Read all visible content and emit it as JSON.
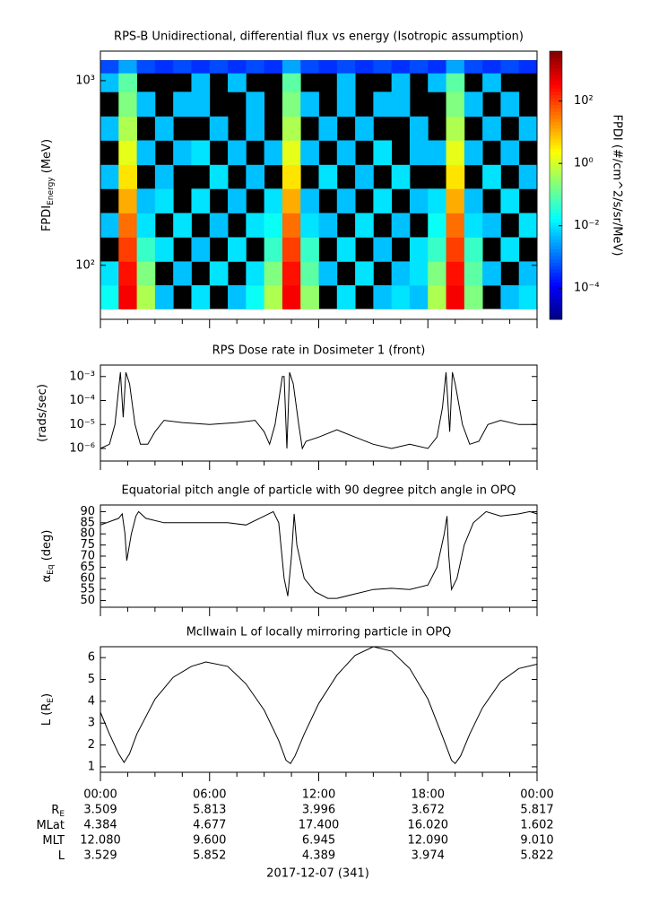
{
  "chart_data": [
    {
      "type": "heatmap",
      "title": "RPS-B  Unidirectional, differential flux vs energy (Isotropic assumption)",
      "ylabel": "FPDI",
      "ylabel_sub": "Energy",
      "ylabel_suffix": " (MeV)",
      "zlabel": "FPDI (#/cm^2/s/sr/MeV)",
      "xlim": [
        0,
        24
      ],
      "xticks": [
        0,
        6,
        12,
        18,
        24
      ],
      "ylog": true,
      "ylim": [
        51,
        1445
      ],
      "yticks": [
        {
          "value": 100,
          "label": "10²"
        },
        {
          "value": 1000,
          "label": "10³"
        }
      ],
      "zlog": true,
      "zlim": [
        1e-05,
        4000
      ],
      "zticks": [
        {
          "value": 0.0001,
          "label": "10⁻⁴"
        },
        {
          "value": 0.01,
          "label": "10⁻²"
        },
        {
          "value": 1,
          "label": "10⁰"
        },
        {
          "value": 100,
          "label": "10²"
        }
      ],
      "colormap": "jet",
      "time_bins": [
        0,
        1,
        2,
        3,
        4,
        5,
        6,
        7,
        8,
        9,
        10,
        11,
        12,
        13,
        14,
        15,
        16,
        17,
        18,
        19,
        20,
        21,
        22,
        23,
        24
      ],
      "energy_bins": [
        58,
        78,
        105,
        142,
        192,
        260,
        350,
        475,
        640,
        870,
        1100,
        1290
      ],
      "z": [
        [
          0.02,
          400,
          0.5,
          0.005,
          null,
          0.01,
          null,
          0.005,
          0.02,
          0.5,
          400,
          0.3,
          null,
          0.01,
          null,
          0.005,
          0.01,
          0.005,
          0.5,
          400,
          0.2,
          null,
          0.005,
          0.01
        ],
        [
          0.01,
          250,
          0.2,
          null,
          0.005,
          null,
          0.01,
          null,
          0.01,
          0.2,
          250,
          0.1,
          0.005,
          null,
          0.01,
          null,
          0.005,
          0.01,
          0.2,
          250,
          0.1,
          0.005,
          null,
          0.005
        ],
        [
          null,
          100,
          0.05,
          0.01,
          null,
          0.005,
          null,
          0.01,
          null,
          0.05,
          100,
          0.05,
          null,
          0.01,
          null,
          0.005,
          null,
          0.01,
          0.05,
          100,
          0.05,
          null,
          0.01,
          null
        ],
        [
          0.005,
          40,
          0.01,
          null,
          0.01,
          null,
          0.005,
          null,
          0.01,
          0.02,
          40,
          0.01,
          0.005,
          null,
          0.01,
          null,
          0.005,
          null,
          0.02,
          40,
          0.01,
          0.005,
          null,
          0.01
        ],
        [
          null,
          12,
          0.005,
          0.01,
          null,
          0.01,
          null,
          0.005,
          null,
          0.01,
          12,
          0.005,
          null,
          0.005,
          null,
          0.01,
          null,
          0.005,
          0.01,
          12,
          0.005,
          null,
          0.01,
          null
        ],
        [
          0.005,
          4,
          null,
          0.005,
          null,
          null,
          0.01,
          null,
          0.005,
          null,
          4,
          null,
          0.01,
          null,
          0.005,
          null,
          0.01,
          null,
          null,
          4,
          null,
          0.01,
          null,
          0.005
        ],
        [
          null,
          1.5,
          0.005,
          null,
          0.005,
          0.01,
          null,
          0.005,
          null,
          0.005,
          1.5,
          0.005,
          null,
          0.005,
          null,
          0.01,
          null,
          0.005,
          0.005,
          1.5,
          0.005,
          null,
          0.005,
          null
        ],
        [
          0.005,
          0.5,
          null,
          0.005,
          null,
          null,
          0.005,
          null,
          0.005,
          null,
          0.5,
          null,
          0.005,
          null,
          0.005,
          null,
          null,
          0.005,
          null,
          0.5,
          null,
          0.005,
          null,
          0.005
        ],
        [
          null,
          0.2,
          0.005,
          null,
          0.005,
          0.005,
          null,
          null,
          0.005,
          null,
          0.2,
          0.005,
          null,
          0.005,
          null,
          0.005,
          0.005,
          null,
          null,
          0.2,
          0.005,
          null,
          0.005,
          null
        ],
        [
          0.005,
          0.1,
          null,
          null,
          null,
          0.005,
          null,
          0.005,
          null,
          null,
          0.1,
          null,
          null,
          0.005,
          null,
          null,
          0.005,
          null,
          0.005,
          0.1,
          null,
          0.005,
          null,
          null
        ],
        [
          0.0005,
          0.003,
          0.0005,
          0.0003,
          0.0005,
          0.0003,
          0.0005,
          0.0003,
          0.0005,
          0.0003,
          0.003,
          0.0005,
          0.0003,
          0.0005,
          0.0003,
          0.0005,
          0.0003,
          0.0005,
          0.0003,
          0.003,
          0.0005,
          0.0003,
          0.0005,
          0.0003
        ]
      ]
    },
    {
      "type": "line",
      "title": "RPS  Dose rate in Dosimeter 1 (front)",
      "ylabel": "(rads/sec)",
      "xlim": [
        0,
        24
      ],
      "xticks": [
        0,
        6,
        12,
        18,
        24
      ],
      "ylog": true,
      "ylim": [
        3e-07,
        0.003
      ],
      "yticks": [
        {
          "value": 1e-06,
          "label": "10⁻⁶"
        },
        {
          "value": 1e-05,
          "label": "10⁻⁵"
        },
        {
          "value": 0.0001,
          "label": "10⁻⁴"
        },
        {
          "value": 0.001,
          "label": "10⁻³"
        }
      ],
      "color": "#000000",
      "x": [
        0,
        0.5,
        0.8,
        1.0,
        1.1,
        1.25,
        1.4,
        1.6,
        1.9,
        2.2,
        2.6,
        3.0,
        3.5,
        4.5,
        6,
        7.5,
        8.5,
        9,
        9.3,
        9.6,
        9.8,
        10.0,
        10.1,
        10.25,
        10.4,
        10.6,
        10.9,
        11.1,
        11.3,
        12,
        13,
        14,
        15,
        16,
        17,
        18,
        18.5,
        18.8,
        19.0,
        19.2,
        19.35,
        19.5,
        19.9,
        20.3,
        20.8,
        21.3,
        22,
        23,
        24
      ],
      "y": [
        1e-06,
        1.5e-06,
        1e-05,
        0.0003,
        0.0015,
        2e-05,
        0.0015,
        0.0005,
        1e-05,
        1.5e-06,
        1.5e-06,
        5e-06,
        1.5e-05,
        1.2e-05,
        1e-05,
        1.2e-05,
        1.5e-05,
        5e-06,
        1.5e-06,
        1e-05,
        0.0001,
        0.001,
        0.001,
        1e-06,
        0.0015,
        0.0005,
        1e-05,
        1e-06,
        2e-06,
        3e-06,
        6e-06,
        3e-06,
        1.5e-06,
        1e-06,
        1.5e-06,
        1e-06,
        3e-06,
        5e-05,
        0.0015,
        5e-06,
        0.0015,
        0.0005,
        1e-05,
        1.5e-06,
        2e-06,
        1e-05,
        1.5e-05,
        1e-05,
        1e-05
      ]
    },
    {
      "type": "line",
      "title": "Equatorial pitch angle of particle with 90 degree pitch angle in OPQ",
      "ylabel": "α",
      "ylabel_sub": "Eq",
      "ylabel_suffix": " (deg)",
      "xlim": [
        0,
        24
      ],
      "xticks": [
        0,
        6,
        12,
        18,
        24
      ],
      "ylim": [
        47,
        93
      ],
      "yticks": [
        50,
        55,
        60,
        65,
        70,
        75,
        80,
        85,
        90
      ],
      "color": "#000000",
      "x": [
        0,
        1,
        1.2,
        1.35,
        1.45,
        1.7,
        1.95,
        2.1,
        2.5,
        3.5,
        5,
        7,
        8,
        9,
        9.5,
        9.8,
        10.1,
        10.3,
        10.5,
        10.65,
        10.8,
        11.2,
        11.8,
        12.5,
        13,
        14,
        15,
        16,
        17,
        18,
        18.5,
        18.9,
        19.05,
        19.15,
        19.3,
        19.6,
        20,
        20.5,
        21.2,
        22,
        23,
        23.6,
        24
      ],
      "y": [
        84,
        87,
        89,
        80,
        68,
        80,
        88,
        90,
        87,
        85,
        85,
        85,
        84,
        88,
        90,
        85,
        60,
        52,
        70,
        89,
        75,
        60,
        54,
        51,
        51,
        53,
        55,
        55.5,
        55,
        57,
        65,
        80,
        88,
        70,
        55,
        60,
        75,
        85,
        90,
        88,
        89,
        90,
        89
      ]
    },
    {
      "type": "line",
      "title": "McIlwain L of locally mirroring particle in OPQ",
      "ylabel": "L (R",
      "ylabel_sub": "E",
      "ylabel_suffix": ")",
      "xlim": [
        0,
        24
      ],
      "xticks": [
        {
          "value": 0,
          "label": "00:00"
        },
        {
          "value": 6,
          "label": "06:00"
        },
        {
          "value": 12,
          "label": "12:00"
        },
        {
          "value": 18,
          "label": "18:00"
        },
        {
          "value": 24,
          "label": "00:00"
        }
      ],
      "ylim": [
        0.75,
        6.5
      ],
      "yticks": [
        1,
        2,
        3,
        4,
        5,
        6
      ],
      "color": "#000000",
      "x": [
        0,
        0.5,
        1,
        1.3,
        1.6,
        2,
        3,
        4,
        5,
        5.8,
        7,
        8,
        9,
        9.8,
        10.2,
        10.45,
        10.7,
        11.2,
        12,
        13,
        14,
        15,
        16,
        17,
        18,
        18.8,
        19.3,
        19.5,
        19.8,
        20.3,
        21,
        22,
        23,
        24
      ],
      "y": [
        3.5,
        2.5,
        1.6,
        1.2,
        1.6,
        2.5,
        4.1,
        5.1,
        5.6,
        5.8,
        5.6,
        4.8,
        3.6,
        2.2,
        1.3,
        1.15,
        1.5,
        2.5,
        3.9,
        5.2,
        6.1,
        6.5,
        6.3,
        5.5,
        4.1,
        2.4,
        1.3,
        1.15,
        1.5,
        2.5,
        3.7,
        4.9,
        5.5,
        5.7
      ]
    }
  ],
  "ephemeris": {
    "rows": [
      {
        "label": "R",
        "label_sub": "E",
        "values": [
          "3.509",
          "5.813",
          "3.996",
          "3.672",
          "5.817"
        ]
      },
      {
        "label": "MLat",
        "values": [
          "4.384",
          "4.677",
          "17.400",
          "16.020",
          "1.602"
        ]
      },
      {
        "label": "MLT",
        "values": [
          "12.080",
          "9.600",
          "6.945",
          "12.090",
          "9.010"
        ]
      },
      {
        "label": "L",
        "values": [
          "3.529",
          "5.852",
          "4.389",
          "3.974",
          "5.822"
        ]
      }
    ],
    "date": "2017-12-07 (341)"
  }
}
